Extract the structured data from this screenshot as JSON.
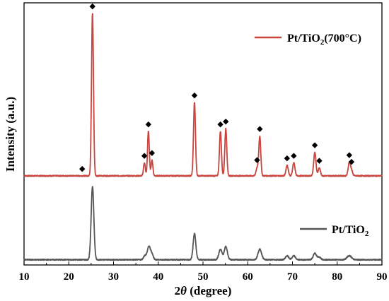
{
  "chart_data": {
    "type": "line",
    "xlabel_prefix": "2",
    "xlabel_symbol": "θ",
    "xlabel_suffix": " (degree)",
    "ylabel": "Intensity (a.u.)",
    "xlim": [
      10,
      90
    ],
    "x_ticks": [
      10,
      20,
      30,
      40,
      50,
      60,
      70,
      80,
      90
    ],
    "y_ticks_labeled": false,
    "grid": false,
    "legend_placement": "right, next to each trace",
    "series": [
      {
        "name": "Pt/TiO2(700°C)",
        "legend_parts": [
          "Pt/TiO",
          "2",
          "(700°C)"
        ],
        "color": "#c9453f",
        "offset": 0.34,
        "baseline_noise": 0.002,
        "peaks": [
          {
            "x": 25.3,
            "h": 0.62,
            "w": 0.22
          },
          {
            "x": 36.9,
            "h": 0.05,
            "w": 0.2
          },
          {
            "x": 37.8,
            "h": 0.17,
            "w": 0.2
          },
          {
            "x": 38.6,
            "h": 0.06,
            "w": 0.2
          },
          {
            "x": 48.1,
            "h": 0.28,
            "w": 0.22
          },
          {
            "x": 53.9,
            "h": 0.17,
            "w": 0.22
          },
          {
            "x": 55.1,
            "h": 0.18,
            "w": 0.22
          },
          {
            "x": 62.1,
            "h": 0.03,
            "w": 0.25
          },
          {
            "x": 62.7,
            "h": 0.15,
            "w": 0.22
          },
          {
            "x": 68.8,
            "h": 0.04,
            "w": 0.25
          },
          {
            "x": 70.3,
            "h": 0.05,
            "w": 0.25
          },
          {
            "x": 75.0,
            "h": 0.09,
            "w": 0.25
          },
          {
            "x": 76.0,
            "h": 0.03,
            "w": 0.25
          },
          {
            "x": 82.7,
            "h": 0.05,
            "w": 0.25
          },
          {
            "x": 83.2,
            "h": 0.02,
            "w": 0.25
          }
        ],
        "markers": [
          23.0,
          25.3,
          36.9,
          37.8,
          38.6,
          48.1,
          53.9,
          55.1,
          62.1,
          62.7,
          68.8,
          70.3,
          75.0,
          76.0,
          82.7,
          83.2
        ],
        "marker_symbol": "◆"
      },
      {
        "name": "Pt/TiO2",
        "legend_parts": [
          "Pt/TiO",
          "2",
          ""
        ],
        "color": "#555555",
        "offset": 0.02,
        "baseline_noise": 0.002,
        "peaks": [
          {
            "x": 25.3,
            "h": 0.28,
            "w": 0.3
          },
          {
            "x": 37.0,
            "h": 0.015,
            "w": 0.3
          },
          {
            "x": 37.9,
            "h": 0.05,
            "w": 0.35
          },
          {
            "x": 38.6,
            "h": 0.02,
            "w": 0.3
          },
          {
            "x": 48.1,
            "h": 0.1,
            "w": 0.3
          },
          {
            "x": 53.9,
            "h": 0.04,
            "w": 0.35
          },
          {
            "x": 55.1,
            "h": 0.05,
            "w": 0.35
          },
          {
            "x": 62.7,
            "h": 0.04,
            "w": 0.4
          },
          {
            "x": 68.8,
            "h": 0.015,
            "w": 0.35
          },
          {
            "x": 70.3,
            "h": 0.015,
            "w": 0.35
          },
          {
            "x": 75.0,
            "h": 0.025,
            "w": 0.35
          },
          {
            "x": 76.0,
            "h": 0.01,
            "w": 0.35
          },
          {
            "x": 82.7,
            "h": 0.015,
            "w": 0.5
          }
        ]
      }
    ]
  }
}
